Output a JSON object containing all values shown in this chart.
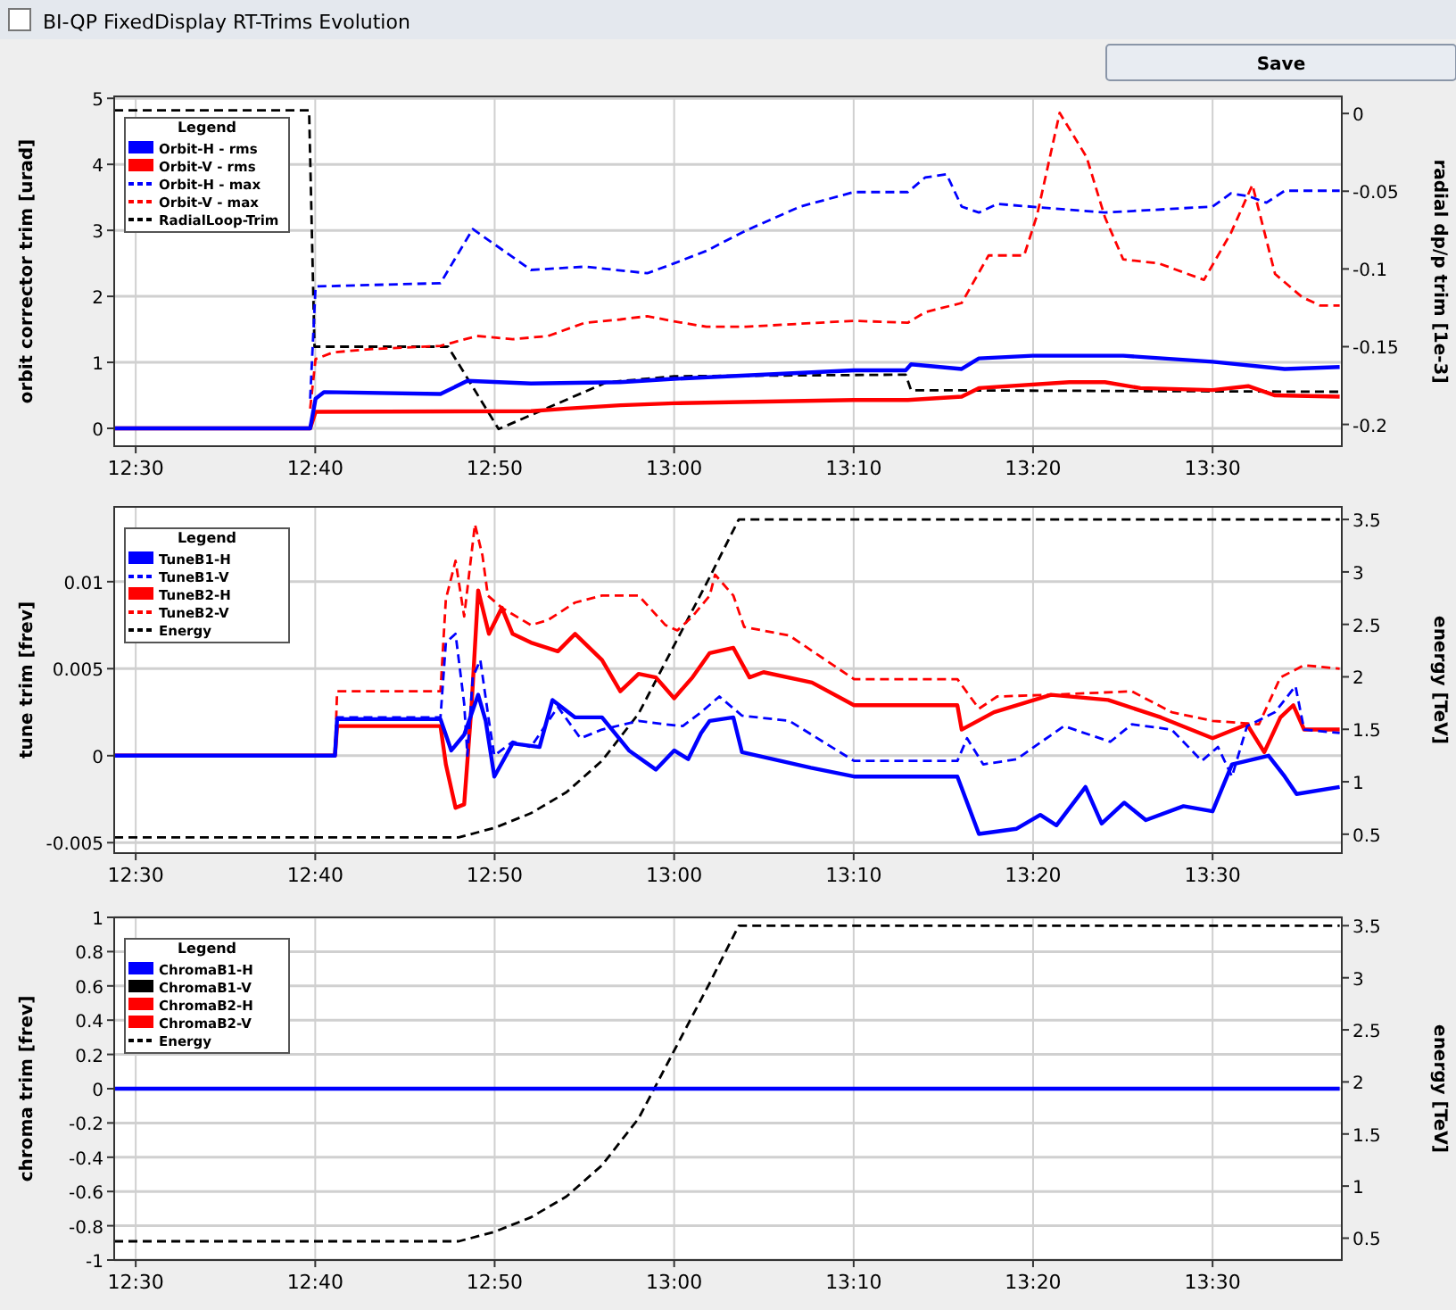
{
  "chart_data": [
    {
      "type": "line",
      "title": "BI-QP FixedDisplay RT-Trims Evolution",
      "annotations": [
        "Save"
      ],
      "ylabel": "orbit corrector trim [urad]",
      "y2label": "radial dp/p trim [1e-3]",
      "legend_title": "Legend",
      "legend": "top left",
      "grid": true,
      "xlim": [
        12.48,
        13.62
      ],
      "xticks": [
        {
          "value": 12.5,
          "label": "12:30"
        },
        {
          "value": 12.6667,
          "label": "12:40"
        },
        {
          "value": 12.8333,
          "label": "12:50"
        },
        {
          "value": 13,
          "label": "13:00"
        },
        {
          "value": 13.1667,
          "label": "13:10"
        },
        {
          "value": 13.3333,
          "label": "13:20"
        },
        {
          "value": 13.5,
          "label": "13:30"
        }
      ],
      "ylim": [
        -0.27,
        5.03
      ],
      "yticks": [
        0,
        1,
        2,
        3,
        4,
        5
      ],
      "y2lim": [
        -0.214,
        0.011
      ],
      "y2ticks": [
        0,
        -0.05,
        -0.1,
        -0.15,
        -0.2
      ],
      "series": [
        {
          "name": "Orbit-H - rms",
          "color": "#0000ff",
          "line_style": "solid",
          "x": [
            12.48,
            12.662,
            12.667,
            12.675,
            12.783,
            12.808,
            12.867,
            12.95,
            13.0,
            13.167,
            13.215,
            13.22,
            13.267,
            13.283,
            13.333,
            13.417,
            13.5,
            13.567,
            13.618
          ],
          "values": [
            0,
            0,
            0.45,
            0.55,
            0.52,
            0.72,
            0.68,
            0.7,
            0.75,
            0.88,
            0.88,
            0.97,
            0.9,
            1.06,
            1.1,
            1.1,
            1.01,
            0.9,
            0.93
          ]
        },
        {
          "name": "Orbit-V - rms",
          "color": "#ff0000",
          "line_style": "solid",
          "x": [
            12.48,
            12.662,
            12.667,
            12.867,
            12.9,
            12.95,
            13.0,
            13.167,
            13.217,
            13.267,
            13.283,
            13.367,
            13.4,
            13.433,
            13.5,
            13.533,
            13.558,
            13.618
          ],
          "values": [
            0,
            0,
            0.25,
            0.26,
            0.3,
            0.35,
            0.38,
            0.43,
            0.43,
            0.48,
            0.61,
            0.7,
            0.7,
            0.61,
            0.58,
            0.64,
            0.5,
            0.48
          ]
        },
        {
          "name": "Orbit-H - max",
          "color": "#0000ff",
          "line_style": "dashed",
          "x": [
            12.662,
            12.667,
            12.783,
            12.813,
            12.867,
            12.917,
            12.975,
            13.0,
            13.03,
            13.067,
            13.117,
            13.167,
            13.217,
            13.233,
            13.253,
            13.267,
            13.283,
            13.3,
            13.4,
            13.5,
            13.517,
            13.533,
            13.55,
            13.567,
            13.618
          ],
          "values": [
            0.45,
            2.15,
            2.2,
            3.02,
            2.4,
            2.45,
            2.35,
            2.5,
            2.69,
            3.0,
            3.36,
            3.58,
            3.58,
            3.8,
            3.85,
            3.36,
            3.27,
            3.4,
            3.27,
            3.36,
            3.56,
            3.52,
            3.42,
            3.6,
            3.6
          ]
        },
        {
          "name": "Orbit-V - max",
          "color": "#ff0000",
          "line_style": "dashed",
          "x": [
            12.662,
            12.667,
            12.683,
            12.717,
            12.783,
            12.817,
            12.85,
            12.883,
            12.917,
            12.95,
            12.975,
            13.0,
            13.03,
            13.067,
            13.167,
            13.217,
            13.233,
            13.267,
            13.292,
            13.325,
            13.337,
            13.358,
            13.383,
            13.4,
            13.417,
            13.45,
            13.492,
            13.517,
            13.537,
            13.558,
            13.583,
            13.6,
            13.618
          ],
          "values": [
            0.3,
            1.05,
            1.15,
            1.2,
            1.25,
            1.4,
            1.35,
            1.4,
            1.6,
            1.65,
            1.7,
            1.62,
            1.54,
            1.54,
            1.63,
            1.6,
            1.76,
            1.9,
            2.62,
            2.62,
            3.23,
            4.78,
            4.11,
            3.2,
            2.56,
            2.5,
            2.25,
            2.96,
            3.69,
            2.34,
            1.99,
            1.86,
            1.86
          ]
        },
        {
          "name": "RadialLoop-Trim",
          "color": "#000000",
          "line_style": "dashed",
          "axis": "y2",
          "x": [
            12.48,
            12.661,
            12.666,
            12.79,
            12.837,
            12.937,
            13.0,
            13.215,
            13.22,
            13.618
          ],
          "values": [
            0.002,
            0.002,
            -0.15,
            -0.15,
            -0.203,
            -0.173,
            -0.169,
            -0.168,
            -0.178,
            -0.179
          ]
        }
      ]
    },
    {
      "type": "line",
      "ylabel": "tune trim [frev]",
      "y2label": "energy [TeV]",
      "legend_title": "Legend",
      "legend": "top left",
      "grid": true,
      "xlim": [
        12.48,
        13.62
      ],
      "xticks": [
        {
          "value": 12.5,
          "label": "12:30"
        },
        {
          "value": 12.6667,
          "label": "12:40"
        },
        {
          "value": 12.8333,
          "label": "12:50"
        },
        {
          "value": 13,
          "label": "13:00"
        },
        {
          "value": 13.1667,
          "label": "13:10"
        },
        {
          "value": 13.3333,
          "label": "13:20"
        },
        {
          "value": 13.5,
          "label": "13:30"
        }
      ],
      "ylim": [
        -0.0056,
        0.0143
      ],
      "yticks": [
        -0.005,
        0,
        0.005,
        0.01
      ],
      "y2lim": [
        0.32,
        3.62
      ],
      "y2ticks": [
        0.5,
        1,
        1.5,
        2,
        2.5,
        3,
        3.5
      ],
      "series": [
        {
          "name": "TuneB1-H",
          "color": "#0000ff",
          "line_style": "solid",
          "x": [
            12.48,
            12.685,
            12.687,
            12.783,
            12.793,
            12.805,
            12.818,
            12.825,
            12.833,
            12.85,
            12.875,
            12.887,
            12.908,
            12.933,
            12.958,
            12.983,
            13.0,
            13.013,
            13.025,
            13.033,
            13.055,
            13.063,
            13.127,
            13.167,
            13.263,
            13.283,
            13.318,
            13.34,
            13.355,
            13.382,
            13.397,
            13.418,
            13.438,
            13.473,
            13.5,
            13.518,
            13.552,
            13.567,
            13.578,
            13.618
          ],
          "values": [
            0,
            0,
            0.0021,
            0.0021,
            0.0003,
            0.0012,
            0.0035,
            0.002,
            -0.0012,
            0.0007,
            0.0005,
            0.0032,
            0.0022,
            0.0022,
            0.0003,
            -0.0008,
            0.0003,
            -0.0002,
            0.0013,
            0.002,
            0.0022,
            0.0002,
            -0.0007,
            -0.0012,
            -0.0012,
            -0.0045,
            -0.0042,
            -0.0034,
            -0.004,
            -0.0018,
            -0.0039,
            -0.0027,
            -0.0037,
            -0.0029,
            -0.0032,
            -0.0005,
            0,
            -0.0012,
            -0.0022,
            -0.0018
          ]
        },
        {
          "name": "TuneB1-V",
          "color": "#0000ff",
          "line_style": "dashed",
          "x": [
            12.48,
            12.685,
            12.687,
            12.783,
            12.788,
            12.797,
            12.805,
            12.808,
            12.813,
            12.82,
            12.828,
            12.833,
            12.85,
            12.867,
            12.892,
            12.913,
            12.933,
            12.967,
            12.992,
            13.008,
            13.025,
            13.042,
            13.063,
            13.107,
            13.167,
            13.263,
            13.272,
            13.287,
            13.318,
            13.362,
            13.405,
            13.425,
            13.462,
            13.49,
            13.505,
            13.518,
            13.532,
            13.558,
            13.577,
            13.585,
            13.618
          ],
          "values": [
            0,
            0,
            0.0022,
            0.0022,
            0.0065,
            0.007,
            0.003,
            0,
            0.0045,
            0.0055,
            0.002,
            0,
            0.0008,
            0.0005,
            0.0028,
            0.001,
            0.0015,
            0.002,
            0.0018,
            0.0017,
            0.0025,
            0.0034,
            0.0023,
            0.002,
            -0.0003,
            -0.0003,
            0.001,
            -0.0005,
            -0.0002,
            0.0017,
            0.0008,
            0.0018,
            0.0015,
            -0.0003,
            0.0005,
            -0.0012,
            0.0017,
            0.0025,
            0.004,
            0.0015,
            0.0013
          ]
        },
        {
          "name": "TuneB2-H",
          "color": "#ff0000",
          "line_style": "solid",
          "x": [
            12.48,
            12.685,
            12.687,
            12.783,
            12.788,
            12.797,
            12.805,
            12.812,
            12.818,
            12.828,
            12.84,
            12.85,
            12.867,
            12.892,
            12.908,
            12.933,
            12.95,
            12.967,
            12.983,
            13.0,
            13.017,
            13.033,
            13.055,
            13.07,
            13.083,
            13.128,
            13.167,
            13.263,
            13.267,
            13.297,
            13.35,
            13.403,
            13.452,
            13.5,
            13.532,
            13.548,
            13.563,
            13.575,
            13.585,
            13.618
          ],
          "values": [
            0,
            0,
            0.0017,
            0.0017,
            -0.0005,
            -0.003,
            -0.0028,
            0.003,
            0.0095,
            0.007,
            0.0085,
            0.007,
            0.0065,
            0.006,
            0.007,
            0.0055,
            0.0037,
            0.0047,
            0.0045,
            0.0033,
            0.0045,
            0.0059,
            0.0062,
            0.0045,
            0.0048,
            0.0042,
            0.0029,
            0.0029,
            0.0015,
            0.0025,
            0.0035,
            0.0032,
            0.0022,
            0.001,
            0.0018,
            0.0002,
            0.0022,
            0.0029,
            0.0015,
            0.0015
          ]
        },
        {
          "name": "TuneB2-V",
          "color": "#ff0000",
          "line_style": "dashed",
          "x": [
            12.48,
            12.685,
            12.687,
            12.783,
            12.788,
            12.797,
            12.805,
            12.815,
            12.822,
            12.827,
            12.84,
            12.867,
            12.883,
            12.908,
            12.933,
            12.967,
            12.992,
            13.003,
            13.017,
            13.033,
            13.038,
            13.055,
            13.065,
            13.107,
            13.167,
            13.263,
            13.283,
            13.3,
            13.35,
            13.425,
            13.462,
            13.5,
            13.543,
            13.563,
            13.585,
            13.618
          ],
          "values": [
            0,
            0,
            0.0037,
            0.0037,
            0.009,
            0.0112,
            0.008,
            0.0133,
            0.0115,
            0.0092,
            0.0085,
            0.0075,
            0.0078,
            0.0088,
            0.0092,
            0.0092,
            0.0075,
            0.0072,
            0.008,
            0.0092,
            0.0104,
            0.0092,
            0.0074,
            0.0069,
            0.0044,
            0.0044,
            0.0027,
            0.0034,
            0.0035,
            0.0037,
            0.0025,
            0.002,
            0.0018,
            0.0045,
            0.0052,
            0.005
          ]
        },
        {
          "name": "Energy",
          "color": "#000000",
          "line_style": "dashed",
          "axis": "y2",
          "x": [
            12.48,
            12.8,
            12.833,
            12.867,
            12.9,
            12.933,
            12.967,
            13.0,
            13.033,
            13.06,
            13.618
          ],
          "values": [
            0.47,
            0.47,
            0.56,
            0.7,
            0.9,
            1.2,
            1.65,
            2.3,
            2.95,
            3.5,
            3.5
          ]
        }
      ]
    },
    {
      "type": "line",
      "ylabel": "chroma trim [frev]",
      "y2label": "energy [TeV]",
      "legend_title": "Legend",
      "legend": "top left",
      "grid": true,
      "xlim": [
        12.48,
        13.62
      ],
      "xticks": [
        {
          "value": 12.5,
          "label": "12:30"
        },
        {
          "value": 12.6667,
          "label": "12:40"
        },
        {
          "value": 12.8333,
          "label": "12:50"
        },
        {
          "value": 13,
          "label": "13:00"
        },
        {
          "value": 13.1667,
          "label": "13:10"
        },
        {
          "value": 13.3333,
          "label": "13:20"
        },
        {
          "value": 13.5,
          "label": "13:30"
        }
      ],
      "ylim": [
        -1,
        1
      ],
      "yticks": [
        -1,
        -0.8,
        -0.6,
        -0.4,
        -0.2,
        0,
        0.2,
        0.4,
        0.6,
        0.8,
        1
      ],
      "y2lim": [
        0.29,
        3.58
      ],
      "y2ticks": [
        0.5,
        1,
        1.5,
        2,
        2.5,
        3,
        3.5
      ],
      "series": [
        {
          "name": "ChromaB1-H",
          "color": "#0000ff",
          "line_style": "solid",
          "x": [
            12.48,
            13.618
          ],
          "values": [
            0,
            0
          ]
        },
        {
          "name": "ChromaB1-V",
          "color": "#000000",
          "line_style": "solid",
          "values": [
            null
          ]
        },
        {
          "name": "ChromaB2-H",
          "color": "#ff0000",
          "line_style": "solid",
          "values": [
            null
          ]
        },
        {
          "name": "ChromaB2-V",
          "color": "#ff0000",
          "line_style": "solid",
          "values": [
            null
          ]
        },
        {
          "name": "Energy",
          "color": "#000000",
          "line_style": "dashed",
          "axis": "y2",
          "x": [
            12.48,
            12.8,
            12.833,
            12.867,
            12.9,
            12.933,
            12.967,
            13.0,
            13.033,
            13.06,
            13.618
          ],
          "values": [
            0.47,
            0.47,
            0.56,
            0.7,
            0.9,
            1.2,
            1.65,
            2.3,
            2.95,
            3.5,
            3.5
          ]
        }
      ]
    }
  ]
}
